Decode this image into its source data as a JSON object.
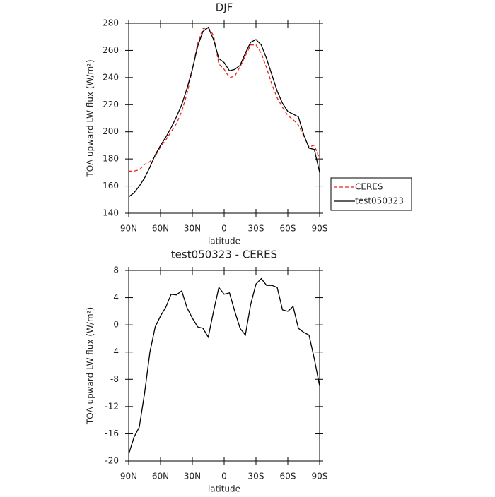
{
  "chart_data": [
    {
      "type": "line",
      "title": "DJF",
      "xlabel": "latitude",
      "ylabel": "TOA upward LW flux (W/m²)",
      "x": [
        90,
        85,
        80,
        75,
        70,
        65,
        60,
        55,
        50,
        45,
        40,
        35,
        30,
        25,
        20,
        15,
        10,
        5,
        0,
        -5,
        -10,
        -15,
        -20,
        -25,
        -30,
        -35,
        -40,
        -45,
        -50,
        -55,
        -60,
        -65,
        -70,
        -75,
        -80,
        -85,
        -90
      ],
      "series": [
        {
          "name": "CERES",
          "color": "#e8241c",
          "line_style": "dashed",
          "values": [
            171,
            171,
            172,
            176,
            178,
            182,
            189,
            194,
            200,
            206,
            215,
            228,
            246,
            265,
            276,
            277,
            271,
            250,
            246,
            240,
            241,
            248,
            256,
            264,
            264,
            258,
            247,
            235,
            225,
            218,
            212,
            209,
            205,
            197,
            189,
            190,
            180
          ]
        },
        {
          "name": "test050323",
          "color": "#000000",
          "line_style": "solid",
          "values": [
            152,
            155,
            160,
            166,
            174,
            183,
            190,
            196,
            203,
            211,
            220,
            232,
            246,
            263,
            274,
            277,
            268,
            254,
            251,
            245,
            246,
            249,
            258,
            266,
            268,
            264,
            254,
            242,
            230,
            221,
            215,
            213,
            211,
            198,
            188,
            187,
            170
          ]
        }
      ],
      "xlim": [
        90,
        -90
      ],
      "xticks": [
        {
          "value": 90,
          "label": "90N"
        },
        {
          "value": 60,
          "label": "60N"
        },
        {
          "value": 30,
          "label": "30N"
        },
        0,
        {
          "value": -30,
          "label": "30S"
        },
        {
          "value": -60,
          "label": "60S"
        },
        {
          "value": -90,
          "label": "90S"
        }
      ],
      "ylim": [
        140,
        280
      ],
      "yticks": [
        140,
        160,
        180,
        200,
        220,
        240,
        260,
        280
      ],
      "legend": "outside-right"
    },
    {
      "type": "line",
      "title": "test050323 - CERES",
      "xlabel": "latitude",
      "ylabel": "TOA upward LW flux (W/m²)",
      "x": [
        90,
        85,
        80,
        75,
        70,
        65,
        60,
        55,
        50,
        45,
        40,
        35,
        30,
        25,
        20,
        15,
        10,
        5,
        0,
        -5,
        -10,
        -15,
        -20,
        -25,
        -30,
        -35,
        -40,
        -45,
        -50,
        -55,
        -60,
        -65,
        -70,
        -75,
        -80,
        -85,
        -90
      ],
      "color": "#000000",
      "values": [
        -19,
        -16.5,
        -15,
        -10,
        -4,
        -0.3,
        1.3,
        2.6,
        4.5,
        4.4,
        5,
        2.5,
        1,
        -0.3,
        -0.5,
        -1.8,
        2,
        5.5,
        4.5,
        4.7,
        2,
        -0.5,
        -1.5,
        3,
        6,
        6.8,
        5.8,
        5.8,
        5.5,
        2.2,
        2,
        2.7,
        -0.5,
        -1.1,
        -1.5,
        -5,
        -9
      ],
      "xlim": [
        90,
        -90
      ],
      "xticks": [
        {
          "value": 90,
          "label": "90N"
        },
        {
          "value": 60,
          "label": "60N"
        },
        {
          "value": 30,
          "label": "30N"
        },
        0,
        {
          "value": -30,
          "label": "30S"
        },
        {
          "value": -60,
          "label": "60S"
        },
        {
          "value": -90,
          "label": "90S"
        }
      ],
      "ylim": [
        -20,
        8
      ],
      "yticks": [
        -20,
        -16,
        -12,
        -8,
        -4,
        0,
        4,
        8
      ]
    }
  ]
}
